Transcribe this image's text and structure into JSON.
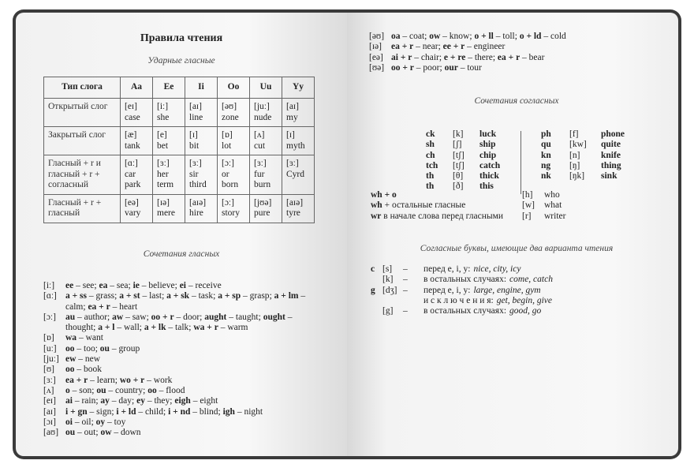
{
  "left": {
    "title": "Правила чтения",
    "subtitle": "Ударные гласные",
    "table": {
      "headers": [
        "Тип слога",
        "Aa",
        "Ee",
        "Ii",
        "Oo",
        "Uu",
        "Yy"
      ],
      "rows": [
        {
          "type": "Открытый слог",
          "cells": [
            [
              "[eɪ]",
              "case"
            ],
            [
              "[iː]",
              "she"
            ],
            [
              "[aɪ]",
              "line"
            ],
            [
              "[əʊ]",
              "zone"
            ],
            [
              "[juː]",
              "nude"
            ],
            [
              "[aɪ]",
              "my"
            ]
          ]
        },
        {
          "type": "Закрытый слог",
          "cells": [
            [
              "[æ]",
              "tank"
            ],
            [
              "[e]",
              "bet"
            ],
            [
              "[ɪ]",
              "bit"
            ],
            [
              "[ɒ]",
              "lot"
            ],
            [
              "[ʌ]",
              "cut"
            ],
            [
              "[ɪ]",
              "myth"
            ]
          ]
        },
        {
          "type": "Гласный + r и гласный + r + согласный",
          "cells": [
            [
              "[ɑː]",
              "car",
              "park"
            ],
            [
              "[ɜː]",
              "her",
              "term"
            ],
            [
              "[ɜː]",
              "sir",
              "third"
            ],
            [
              "[ɔː]",
              "or",
              "born"
            ],
            [
              "[ɜː]",
              "fur",
              "burn"
            ],
            [
              "[ɜː]",
              "Cyrd"
            ]
          ]
        },
        {
          "type": "Гласный + r + гласный",
          "cells": [
            [
              "[eə]",
              "vary"
            ],
            [
              "[ɪə]",
              "mere"
            ],
            [
              "[aɪə]",
              "hire"
            ],
            [
              "[ɔː]",
              "story"
            ],
            [
              "[jʊə]",
              "pure"
            ],
            [
              "[aɪə]",
              "tyre"
            ]
          ]
        }
      ]
    },
    "subtitle2": "Сочетания гласных",
    "vowels": [
      {
        "ipa": "[iː]",
        "e": [
          [
            "ee",
            "see"
          ],
          [
            "ea",
            "sea"
          ],
          [
            "ie",
            "believe"
          ],
          [
            "ei",
            "receive"
          ]
        ]
      },
      {
        "ipa": "[ɑː]",
        "e": [
          [
            "a + ss",
            "grass"
          ],
          [
            "a + st",
            "last"
          ],
          [
            "a + sk",
            "task"
          ],
          [
            "a + sp",
            "grasp"
          ],
          [
            "a + lm",
            "calm"
          ],
          [
            "ea + r",
            "heart"
          ]
        ]
      },
      {
        "ipa": "[ɔː]",
        "e": [
          [
            "au",
            "author"
          ],
          [
            "aw",
            "saw"
          ],
          [
            "oo + r",
            "door"
          ],
          [
            "aught",
            "taught"
          ],
          [
            "ought",
            "thought"
          ],
          [
            "a + l",
            "wall"
          ],
          [
            "a + lk",
            "talk"
          ],
          [
            "wa + r",
            "warm"
          ]
        ]
      },
      {
        "ipa": "[ɒ]",
        "e": [
          [
            "wa",
            "want"
          ]
        ]
      },
      {
        "ipa": "[uː]",
        "e": [
          [
            "oo",
            "too"
          ],
          [
            "ou",
            "group"
          ]
        ]
      },
      {
        "ipa": "[juː]",
        "e": [
          [
            "ew",
            "new"
          ]
        ]
      },
      {
        "ipa": "[ʊ]",
        "e": [
          [
            "oo",
            "book"
          ]
        ]
      },
      {
        "ipa": "[ɜː]",
        "e": [
          [
            "ea + r",
            "learn"
          ],
          [
            "wo + r",
            "work"
          ]
        ]
      },
      {
        "ipa": "[ʌ]",
        "e": [
          [
            "o",
            "son"
          ],
          [
            "ou",
            "country"
          ],
          [
            "oo",
            "flood"
          ]
        ]
      },
      {
        "ipa": "[eɪ]",
        "e": [
          [
            "ai",
            "rain"
          ],
          [
            "ay",
            "day"
          ],
          [
            "ey",
            "they"
          ],
          [
            "eigh",
            "eight"
          ]
        ]
      },
      {
        "ipa": "[aɪ]",
        "e": [
          [
            "i + gn",
            "sign"
          ],
          [
            "i + ld",
            "child"
          ],
          [
            "i + nd",
            "blind"
          ],
          [
            "igh",
            "night"
          ]
        ]
      },
      {
        "ipa": "[ɔɪ]",
        "e": [
          [
            "oi",
            "oil"
          ],
          [
            "oy",
            "toy"
          ]
        ]
      },
      {
        "ipa": "[aʊ]",
        "e": [
          [
            "ou",
            "out"
          ],
          [
            "ow",
            "down"
          ]
        ]
      }
    ]
  },
  "right": {
    "vowels": [
      {
        "ipa": "[əʊ]",
        "e": [
          [
            "oa",
            "coat"
          ],
          [
            "ow",
            "know"
          ],
          [
            "o + ll",
            "toll"
          ],
          [
            "o + ld",
            "cold"
          ]
        ]
      },
      {
        "ipa": "[ɪə]",
        "e": [
          [
            "ea + r",
            "near"
          ],
          [
            "ee + r",
            "engineer"
          ]
        ]
      },
      {
        "ipa": "[eə]",
        "e": [
          [
            "ai + r",
            "chair"
          ],
          [
            "e + re",
            "there"
          ],
          [
            "ea + r",
            "bear"
          ]
        ]
      },
      {
        "ipa": "[ʊə]",
        "e": [
          [
            "oo + r",
            "poor"
          ],
          [
            "our",
            "tour"
          ]
        ]
      }
    ],
    "subtitle": "Сочетания согласных",
    "cons_left": [
      [
        "ck",
        "[k]",
        "luck"
      ],
      [
        "sh",
        "[ʃ]",
        "ship"
      ],
      [
        "ch",
        "[tʃ]",
        "chip"
      ],
      [
        "tch",
        "[tʃ]",
        "catch"
      ],
      [
        "th",
        "[θ]",
        "thick"
      ],
      [
        "th",
        "[ð]",
        "this"
      ]
    ],
    "cons_right": [
      [
        "ph",
        "[f]",
        "phone"
      ],
      [
        "qu",
        "[kw]",
        "quite"
      ],
      [
        "kn",
        "[n]",
        "knife"
      ],
      [
        "ng",
        "[ŋ]",
        "thing"
      ],
      [
        "nk",
        "[ŋk]",
        "sink"
      ]
    ],
    "wh": [
      {
        "b": "wh + o",
        "t": "",
        "ipa": "[h]",
        "w": "who"
      },
      {
        "b": "wh",
        "t": " + остальные гласные",
        "ipa": "[w]",
        "w": "what"
      },
      {
        "b": "wr",
        "t": " в начале слова перед гласными",
        "ipa": "[r]",
        "w": "writer"
      }
    ],
    "subtitle2": "Согласные буквы, имеющие два варианта чтения",
    "two": [
      {
        "l": "c",
        "ipa": "[s]",
        "d": "–",
        "rule": "перед e, i, y:",
        "ex": "nice, city, icy"
      },
      {
        "l": "",
        "ipa": "[k]",
        "d": "–",
        "rule": "в остальных случаях:",
        "ex": "come, catch"
      },
      {
        "l": "g",
        "ipa": "[dʒ]",
        "d": "–",
        "rule": "перед e, i, y:",
        "ex": "large, engine, gym"
      },
      {
        "l": "",
        "ipa": "",
        "d": "",
        "rule": "и с к л ю ч е н и я:",
        "ex": "get, begin, give"
      },
      {
        "l": "",
        "ipa": "[g]",
        "d": "–",
        "rule": "в остальных случаях:",
        "ex": "good, go"
      }
    ]
  }
}
